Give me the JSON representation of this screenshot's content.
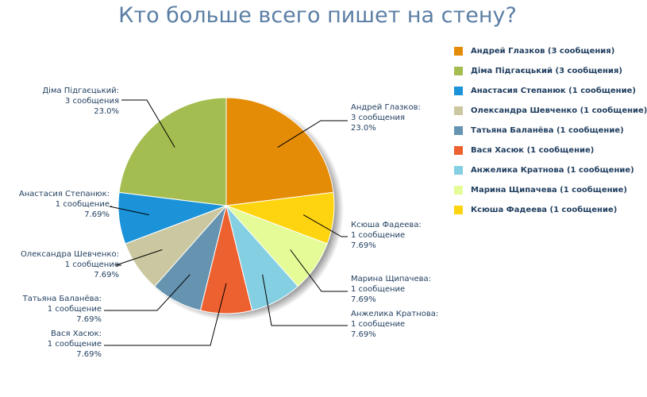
{
  "chart_data": {
    "type": "pie",
    "title": "Кто больше всего пишет на стену?",
    "slices": [
      {
        "name": "Андрей Глазков",
        "legend": "Андрей Глазков (3 сообщения)",
        "count_text": "3 сообщения",
        "percent_text": "23.0%",
        "value": 23.0,
        "color": "#e58c06"
      },
      {
        "name": "Ксюша Фадеева",
        "legend": "Ксюша Фадеева (1 сообщение)",
        "count_text": "1 сообщение",
        "percent_text": "7.69%",
        "value": 7.69,
        "color": "#fed410"
      },
      {
        "name": "Марина Щипачева",
        "legend": "Марина Щипачева (1 сообщение)",
        "count_text": "1 сообщение",
        "percent_text": "7.69%",
        "value": 7.69,
        "color": "#e4fb98"
      },
      {
        "name": "Анжелика Кратнова",
        "legend": "Анжелика Кратнова (1 сообщение)",
        "count_text": "1 сообщение",
        "percent_text": "7.69%",
        "value": 7.69,
        "color": "#85cfe2"
      },
      {
        "name": "Вася Хасюк",
        "legend": "Вася Хасюк (1 сообщение)",
        "count_text": "1 сообщение",
        "percent_text": "7.69%",
        "value": 7.69,
        "color": "#ed602f"
      },
      {
        "name": "Татьяна Баланёва",
        "legend": "Татьяна Баланёва (1 сообщение)",
        "count_text": "1 сообщение",
        "percent_text": "7.69%",
        "value": 7.69,
        "color": "#6593b0"
      },
      {
        "name": "Олександра Шевченко",
        "legend": "Олександра Шевченко (1 сообщение)",
        "count_text": "1 сообщение",
        "percent_text": "7.69%",
        "value": 7.69,
        "color": "#cbc8a1"
      },
      {
        "name": "Анастасия Степанюк",
        "legend": "Анастасия Степанюк (1 сообщение)",
        "count_text": "1 сообщение",
        "percent_text": "7.69%",
        "value": 7.69,
        "color": "#1c93d9"
      },
      {
        "name": "Діма Підгаєцький",
        "legend": "Діма Підгаєцький (3 сообщения)",
        "count_text": "3 сообщения",
        "percent_text": "23.0%",
        "value": 23.0,
        "color": "#a4bd50"
      }
    ],
    "legend_order": [
      0,
      8,
      7,
      6,
      5,
      4,
      3,
      2,
      1
    ],
    "legend_position": "right"
  }
}
